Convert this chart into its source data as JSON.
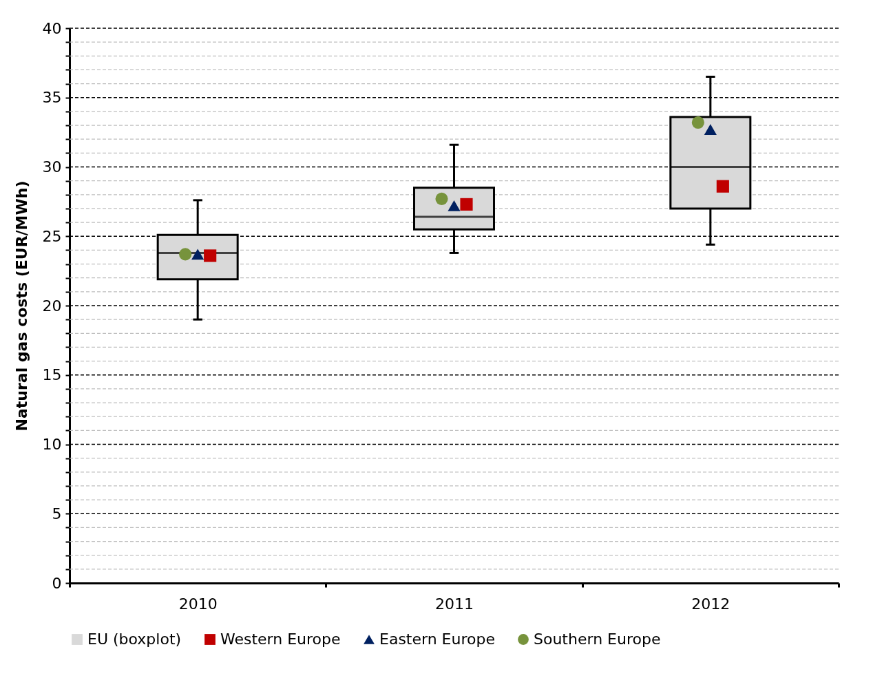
{
  "chart_data": {
    "type": "box",
    "ylabel": "Natural gas costs (EUR/MWh)",
    "categories": [
      "2010",
      "2011",
      "2012"
    ],
    "ylim": [
      0,
      40
    ],
    "yticks": [
      0,
      {
        "value": 1,
        "label": null
      },
      {
        "value": 2,
        "label": null
      },
      {
        "value": 3,
        "label": null
      },
      {
        "value": 4,
        "label": null
      },
      5,
      {
        "value": 6,
        "label": null
      },
      {
        "value": 7,
        "label": null
      },
      {
        "value": 8,
        "label": null
      },
      {
        "value": 9,
        "label": null
      },
      10,
      {
        "value": 11,
        "label": null
      },
      {
        "value": 12,
        "label": null
      },
      {
        "value": 13,
        "label": null
      },
      {
        "value": 14,
        "label": null
      },
      15,
      {
        "value": 16,
        "label": null
      },
      {
        "value": 17,
        "label": null
      },
      {
        "value": 18,
        "label": null
      },
      {
        "value": 19,
        "label": null
      },
      20,
      {
        "value": 21,
        "label": null
      },
      {
        "value": 22,
        "label": null
      },
      {
        "value": 23,
        "label": null
      },
      {
        "value": 24,
        "label": null
      },
      25,
      {
        "value": 26,
        "label": null
      },
      {
        "value": 27,
        "label": null
      },
      {
        "value": 28,
        "label": null
      },
      {
        "value": 29,
        "label": null
      },
      30,
      {
        "value": 31,
        "label": null
      },
      {
        "value": 32,
        "label": null
      },
      {
        "value": 33,
        "label": null
      },
      {
        "value": 34,
        "label": null
      },
      35,
      {
        "value": 36,
        "label": null
      },
      {
        "value": 37,
        "label": null
      },
      {
        "value": 38,
        "label": null
      },
      {
        "value": 39,
        "label": null
      },
      40
    ],
    "grid": "y",
    "legend": "bottom",
    "series": [
      {
        "name": "EU (boxplot)",
        "color": "#d9d9d9",
        "boxes": [
          {
            "low": 19.0,
            "q1": 21.9,
            "median": 23.8,
            "q3": 25.1,
            "high": 27.6
          },
          {
            "low": 23.8,
            "q1": 25.5,
            "median": 26.4,
            "q3": 28.5,
            "high": 31.6
          },
          {
            "low": 24.4,
            "q1": 27.0,
            "median": 30.0,
            "q3": 33.6,
            "high": 36.5
          }
        ]
      },
      {
        "name": "Western Europe",
        "type": "scatter",
        "marker": "square",
        "color": "#c00000",
        "values": [
          23.6,
          27.3,
          28.6
        ]
      },
      {
        "name": "Eastern Europe",
        "type": "scatter",
        "marker": "triangle",
        "color": "#002060",
        "values": [
          23.7,
          27.2,
          32.7
        ]
      },
      {
        "name": "Southern Europe",
        "type": "scatter",
        "marker": "circle",
        "color": "#77933c",
        "values": [
          23.7,
          27.7,
          33.2
        ]
      }
    ]
  }
}
